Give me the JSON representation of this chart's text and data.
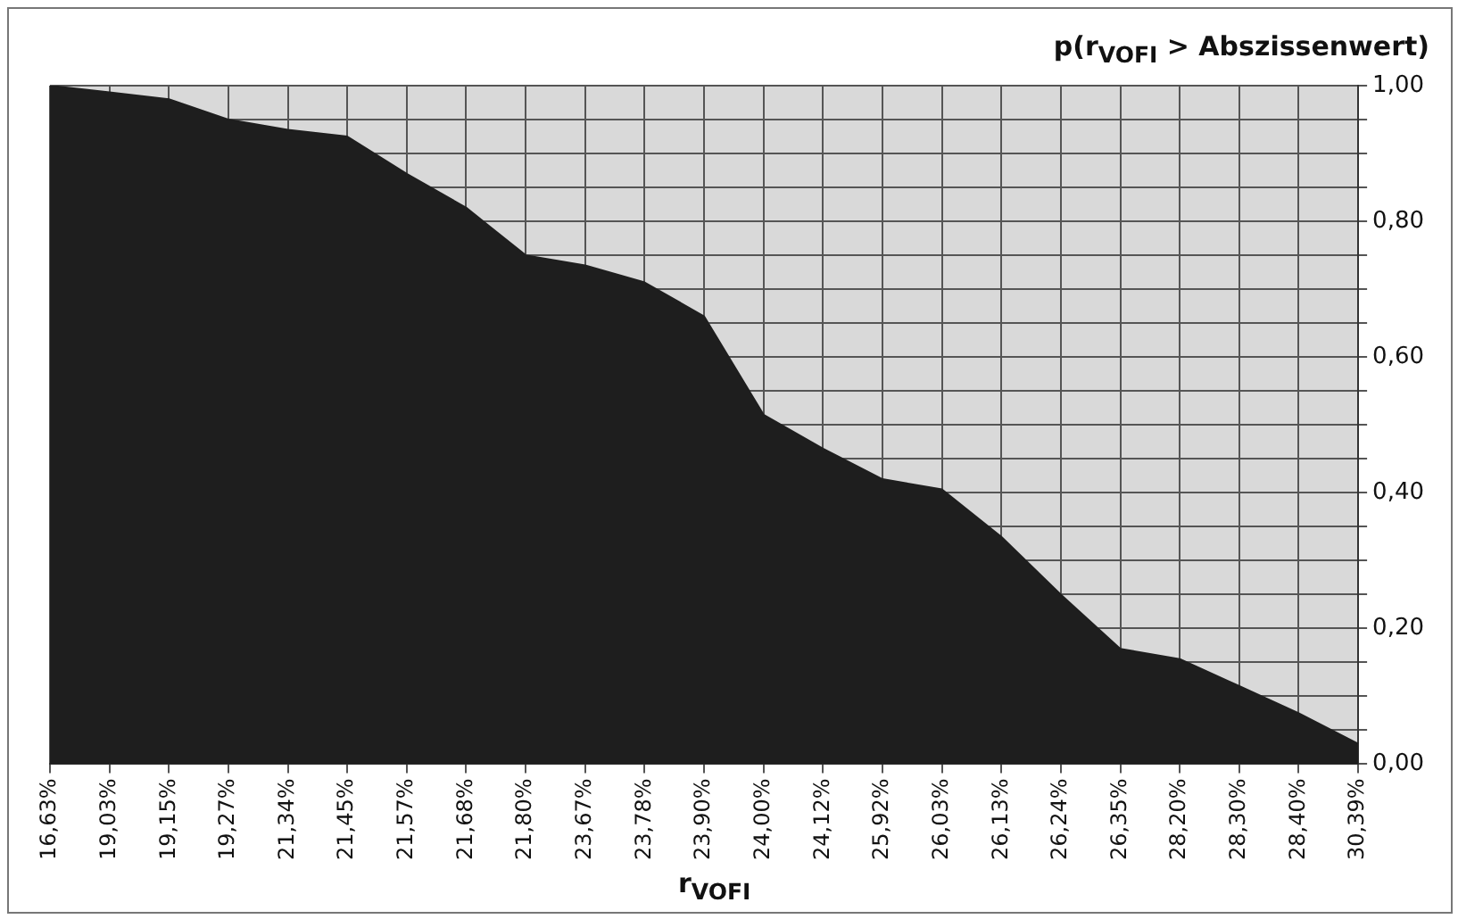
{
  "chart_data": {
    "type": "area",
    "title": "p(r$_{VOFI}$ > Abszissenwert)",
    "xlabel": "r$_{VOFI}$",
    "categories": [
      "16,63%",
      "19,03%",
      "19,15%",
      "19,27%",
      "21,34%",
      "21,45%",
      "21,57%",
      "21,68%",
      "21,80%",
      "23,67%",
      "23,78%",
      "23,90%",
      "24,00%",
      "24,12%",
      "25,92%",
      "26,03%",
      "26,13%",
      "26,24%",
      "26,35%",
      "28,20%",
      "28,30%",
      "28,40%",
      "30,39%"
    ],
    "series": [
      {
        "color": "#1e1e1e",
        "values": [
          1.0,
          0.99,
          0.98,
          0.95,
          0.935,
          0.925,
          0.87,
          0.82,
          0.75,
          0.735,
          0.71,
          0.66,
          0.515,
          0.465,
          0.42,
          0.405,
          0.335,
          0.25,
          0.17,
          0.155,
          0.115,
          0.075,
          0.03
        ]
      }
    ],
    "ylim": [
      0,
      1
    ],
    "yticks": [
      {
        "value": 0,
        "label": "0,00"
      },
      {
        "value": 0.05,
        "label": null
      },
      {
        "value": 0.1,
        "label": null
      },
      {
        "value": 0.15,
        "label": null
      },
      {
        "value": 0.2,
        "label": "0,20"
      },
      {
        "value": 0.25,
        "label": null
      },
      {
        "value": 0.3,
        "label": null
      },
      {
        "value": 0.35,
        "label": null
      },
      {
        "value": 0.4,
        "label": "0,40"
      },
      {
        "value": 0.45,
        "label": null
      },
      {
        "value": 0.5,
        "label": null
      },
      {
        "value": 0.55,
        "label": null
      },
      {
        "value": 0.6,
        "label": "0,60"
      },
      {
        "value": 0.65,
        "label": null
      },
      {
        "value": 0.7,
        "label": null
      },
      {
        "value": 0.75,
        "label": null
      },
      {
        "value": 0.8,
        "label": "0,80"
      },
      {
        "value": 0.85,
        "label": null
      },
      {
        "value": 0.9,
        "label": null
      },
      {
        "value": 0.95,
        "label": null
      },
      {
        "value": 1,
        "label": "1,00"
      }
    ],
    "grid": true,
    "legend": false,
    "marker": "none"
  }
}
